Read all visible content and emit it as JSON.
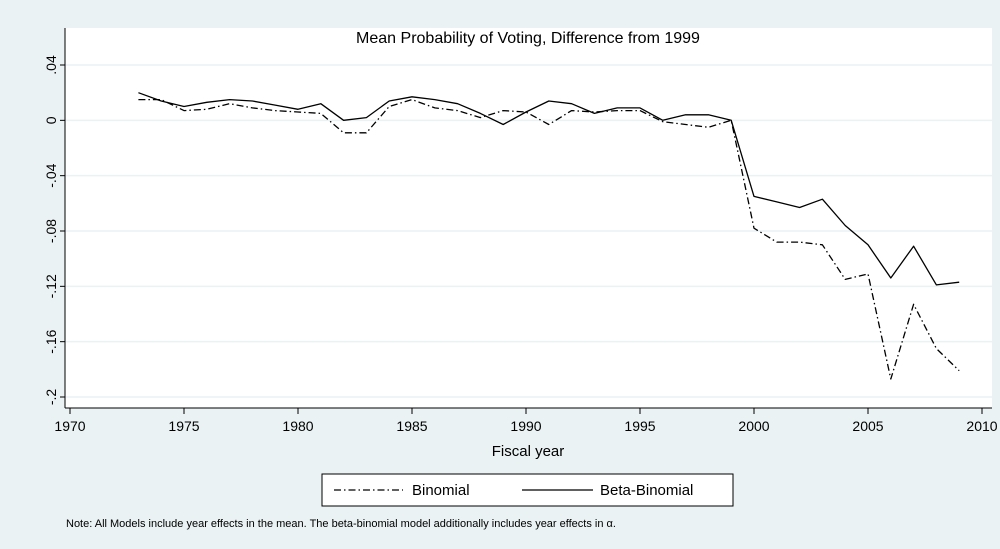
{
  "chart_data": {
    "type": "line",
    "title": "Mean Probability of Voting, Difference from 1999",
    "xlabel": "Fiscal year",
    "ylabel": "",
    "xlim": [
      1970,
      2010
    ],
    "ylim": [
      -0.2,
      0.04
    ],
    "xticks": [
      1970,
      1975,
      1980,
      1985,
      1990,
      1995,
      2000,
      2005,
      2010
    ],
    "xtick_labels": [
      "1970",
      "1975",
      "1980",
      "1985",
      "1990",
      "1995",
      "2000",
      "2005",
      "2010"
    ],
    "yticks": [
      0.04,
      0,
      -0.04,
      -0.08,
      -0.12,
      -0.16,
      -0.2
    ],
    "ytick_labels": [
      ".04",
      "0",
      "-.04",
      "-.08",
      "-.12",
      "-.16",
      "-.2"
    ],
    "grid": "horizontal",
    "legend_position": "bottom",
    "x": [
      1973,
      1974,
      1975,
      1976,
      1977,
      1978,
      1979,
      1980,
      1981,
      1982,
      1983,
      1984,
      1985,
      1986,
      1987,
      1988,
      1989,
      1990,
      1991,
      1992,
      1993,
      1994,
      1995,
      1996,
      1997,
      1998,
      1999,
      2000,
      2001,
      2002,
      2003,
      2004,
      2005,
      2006,
      2007,
      2008,
      2009
    ],
    "series": [
      {
        "name": "Binomial",
        "style": "dash-dot",
        "color": "#000000",
        "values": [
          0.015,
          0.015,
          0.007,
          0.008,
          0.012,
          0.009,
          0.007,
          0.006,
          0.005,
          -0.009,
          -0.009,
          0.01,
          0.015,
          0.009,
          0.007,
          0.002,
          0.007,
          0.006,
          -0.003,
          0.007,
          0.006,
          0.007,
          0.007,
          -0.001,
          -0.003,
          -0.005,
          0.0,
          -0.078,
          -0.088,
          -0.088,
          -0.09,
          -0.115,
          -0.111,
          -0.187,
          -0.133,
          -0.165,
          -0.181
        ]
      },
      {
        "name": "Beta-Binomial",
        "style": "solid",
        "color": "#000000",
        "values": [
          0.02,
          0.014,
          0.01,
          0.013,
          0.015,
          0.014,
          0.011,
          0.008,
          0.012,
          0.0,
          0.002,
          0.014,
          0.017,
          0.015,
          0.012,
          0.005,
          -0.003,
          0.006,
          0.014,
          0.012,
          0.005,
          0.009,
          0.009,
          0.0,
          0.004,
          0.004,
          0.0,
          -0.055,
          -0.059,
          -0.063,
          -0.057,
          -0.076,
          -0.09,
          -0.114,
          -0.091,
          -0.119,
          -0.117
        ]
      }
    ]
  },
  "legend": {
    "items": [
      "Binomial",
      "Beta-Binomial"
    ]
  },
  "note": "Note: All Models include year effects  in the mean. The beta-binomial model additionally includes  year effects in α."
}
